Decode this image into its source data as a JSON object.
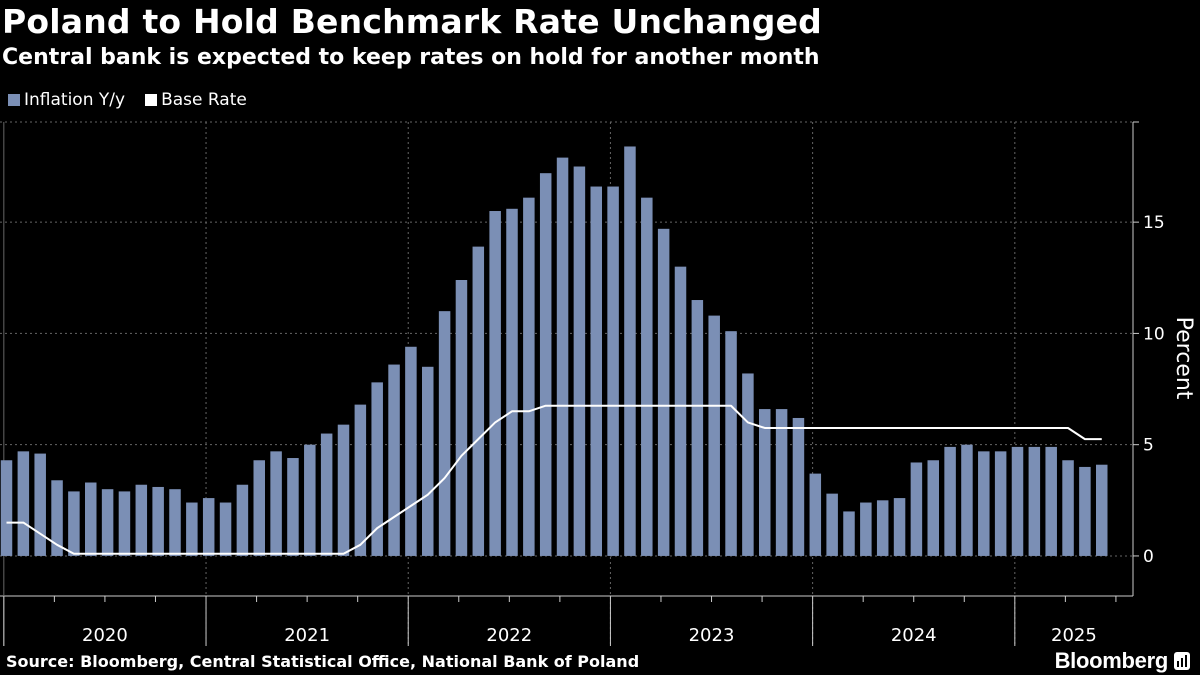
{
  "header": {
    "title": "Poland to Hold Benchmark Rate Unchanged",
    "subtitle": "Central bank is expected to keep rates on hold for another month"
  },
  "legend": {
    "items": [
      {
        "label": "Inflation Y/y",
        "color": "#7b8fb5"
      },
      {
        "label": "Base Rate",
        "color": "#ffffff"
      }
    ]
  },
  "footer": {
    "source": "Source: Bloomberg, Central Statistical Office, National Bank of Poland",
    "brand": "Bloomberg"
  },
  "chart_data": {
    "type": "bar",
    "title": "Poland to Hold Benchmark Rate Unchanged",
    "ylabel": "Percent",
    "xlabel": "",
    "ylim": [
      -1.8,
      19.5
    ],
    "yticks": [
      0,
      5,
      10,
      15
    ],
    "year_labels": [
      "2020",
      "2021",
      "2022",
      "2023",
      "2024",
      "2025"
    ],
    "months_start": "2020-01",
    "series": [
      {
        "name": "Inflation Y/y",
        "kind": "bar",
        "color": "#7b8fb5",
        "values": [
          4.3,
          4.7,
          4.6,
          3.4,
          2.9,
          3.3,
          3.0,
          2.9,
          3.2,
          3.1,
          3.0,
          2.4,
          2.6,
          2.4,
          3.2,
          4.3,
          4.7,
          4.4,
          5.0,
          5.5,
          5.9,
          6.8,
          7.8,
          8.6,
          9.4,
          8.5,
          11.0,
          12.4,
          13.9,
          15.5,
          15.6,
          16.1,
          17.2,
          17.9,
          17.5,
          16.6,
          16.6,
          18.4,
          16.1,
          14.7,
          13.0,
          11.5,
          10.8,
          10.1,
          8.2,
          6.6,
          6.6,
          6.2,
          3.7,
          2.8,
          2.0,
          2.4,
          2.5,
          2.6,
          4.2,
          4.3,
          4.9,
          5.0,
          4.7,
          4.7,
          4.9,
          4.9,
          4.9,
          4.3,
          4.0,
          4.1
        ]
      },
      {
        "name": "Base Rate",
        "kind": "line",
        "color": "#ffffff",
        "values": [
          1.5,
          1.5,
          1.0,
          0.5,
          0.1,
          0.1,
          0.1,
          0.1,
          0.1,
          0.1,
          0.1,
          0.1,
          0.1,
          0.1,
          0.1,
          0.1,
          0.1,
          0.1,
          0.1,
          0.1,
          0.1,
          0.5,
          1.25,
          1.75,
          2.25,
          2.75,
          3.5,
          4.5,
          5.25,
          6.0,
          6.5,
          6.5,
          6.75,
          6.75,
          6.75,
          6.75,
          6.75,
          6.75,
          6.75,
          6.75,
          6.75,
          6.75,
          6.75,
          6.75,
          6.0,
          5.75,
          5.75,
          5.75,
          5.75,
          5.75,
          5.75,
          5.75,
          5.75,
          5.75,
          5.75,
          5.75,
          5.75,
          5.75,
          5.75,
          5.75,
          5.75,
          5.75,
          5.75,
          5.75,
          5.25,
          5.25
        ]
      }
    ]
  }
}
